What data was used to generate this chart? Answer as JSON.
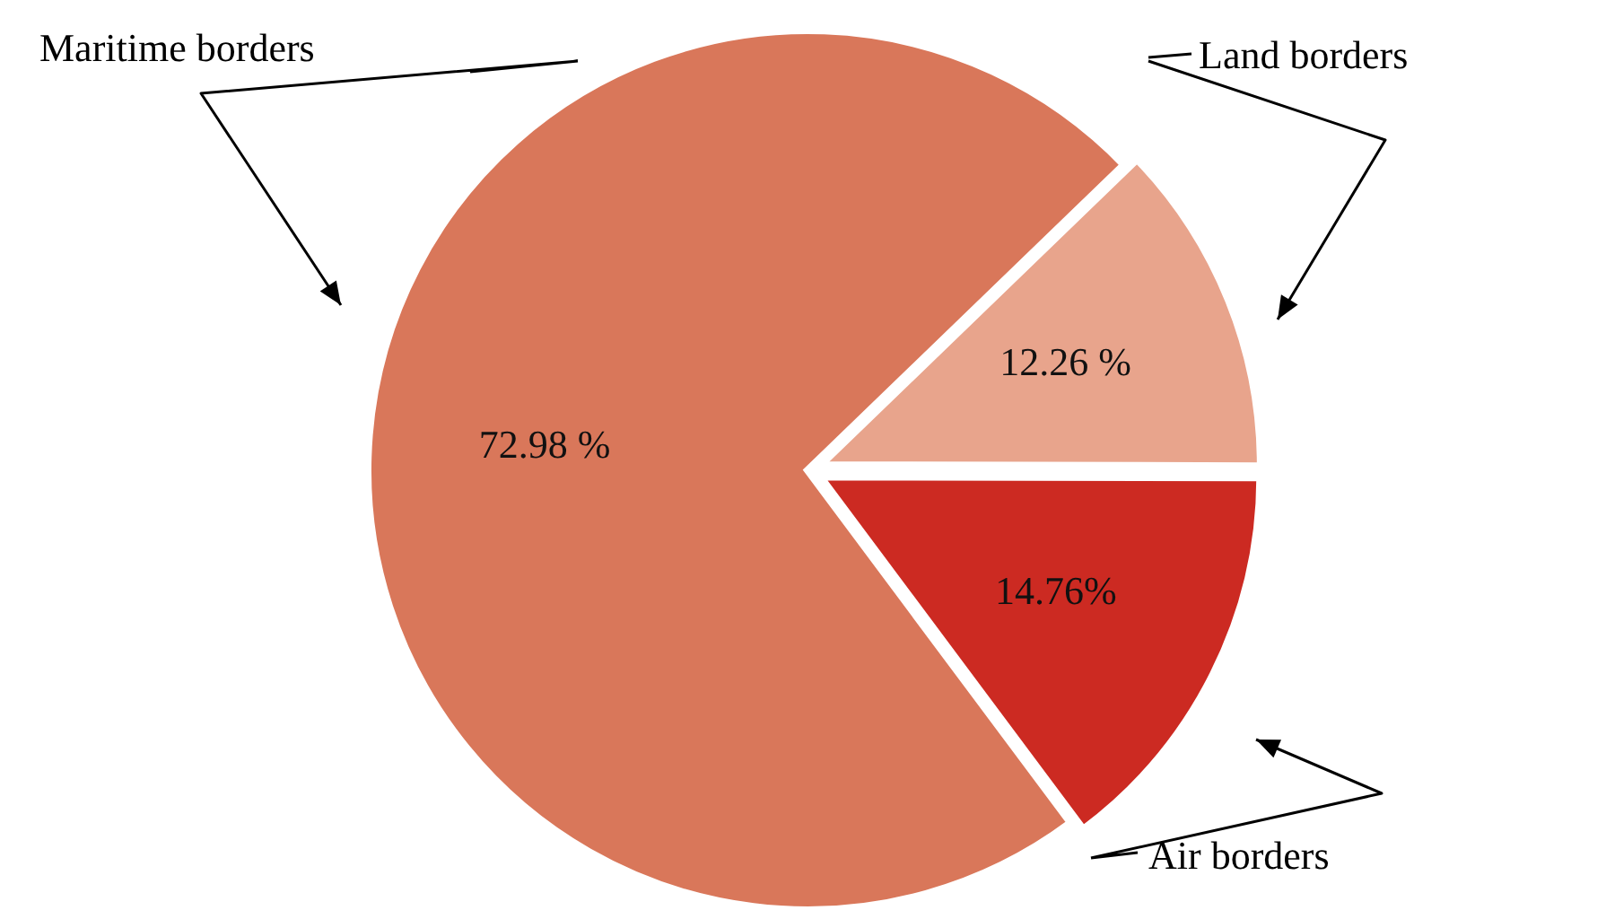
{
  "chart_data": {
    "type": "pie",
    "categories": [
      "Land borders",
      "Air borders",
      "Maritime borders"
    ],
    "values": [
      12.26,
      14.76,
      72.98
    ],
    "colors": [
      "#e8a48c",
      "#cc2a22",
      "#d9775a"
    ],
    "value_labels": [
      "12.26 %",
      "14.76%",
      "72.98 %"
    ]
  }
}
